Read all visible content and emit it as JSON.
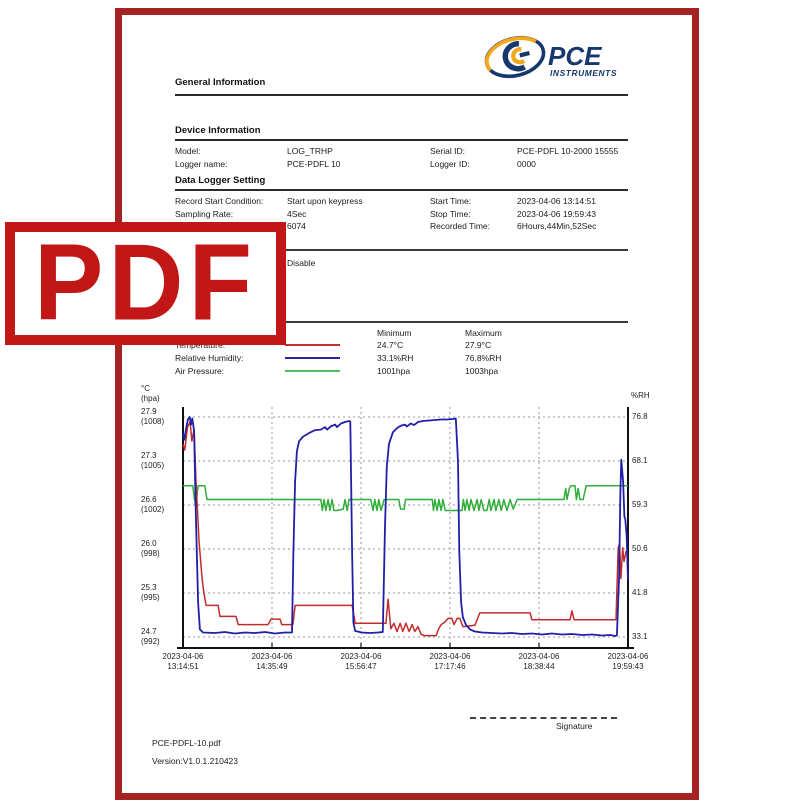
{
  "page": {
    "stamp_text": "PDF",
    "frame_color": "#a32222",
    "stamp_color": "#c11717"
  },
  "logo": {
    "brand": "PCE",
    "sub": "INSTRUMENTS",
    "navy": "#16386e",
    "orange": "#f2a71d"
  },
  "sections": {
    "general": "General Information",
    "device": "Device Information",
    "logger": "Data Logger Setting"
  },
  "device_info": {
    "model_label": "Model:",
    "model_value": "LOG_TRHP",
    "serial_label": "Serial ID:",
    "serial_value": "PCE-PDFL 10-2000 15555",
    "name_label": "Logger name:",
    "name_value": "PCE-PDFL 10",
    "id_label": "Logger ID:",
    "id_value": "0000"
  },
  "logger_setting": {
    "cond_label": "Record Start Condition:",
    "cond_value": "Start upon keypress",
    "start_label": "Start Time:",
    "start_value": "2023-04-06 13:14:51",
    "rate_label": "Sampling Rate:",
    "rate_value": "4Sec",
    "stop_label": "Stop Time:",
    "stop_value": "2023-04-06 19:59:43",
    "count_value": "6074",
    "rec_label": "Recorded Time:",
    "rec_value": "6Hours,44Min,52Sec",
    "alarm_value": "Disable"
  },
  "summary": {
    "col_min": "Minimum",
    "col_max": "Maximum",
    "rows": [
      {
        "label": "Temperature:",
        "color": "#c03030",
        "min": "24.7°C",
        "max": "27.9°C"
      },
      {
        "label": "Relative Humidity:",
        "color": "#2525a5",
        "min": "33.1%RH",
        "max": "76.8%RH"
      },
      {
        "label": "Air Pressure:",
        "color": "#4fbf5f",
        "min": "1001hpa",
        "max": "1003hpa"
      }
    ]
  },
  "footer": {
    "filename": "PCE-PDFL-10.pdf",
    "version": "Version:V1.0.1.210423",
    "signature_label": "Signature"
  },
  "chart_data": {
    "type": "line",
    "grid": true,
    "y_left": {
      "title_lines": [
        "°C",
        "(hpa)"
      ],
      "ticks": [
        [
          "27.9",
          "(1008)"
        ],
        [
          "27.3",
          "(1005)"
        ],
        [
          "26.6",
          "(1002)"
        ],
        [
          "26.0",
          "(998)"
        ],
        [
          "25.3",
          "(995)"
        ],
        [
          "24.7",
          "(992)"
        ]
      ],
      "temp_range": [
        24.7,
        27.9
      ],
      "pressure_range": [
        992,
        1008
      ]
    },
    "y_right": {
      "title": "%RH",
      "ticks": [
        "76.8",
        "68.1",
        "59.3",
        "50.6",
        "41.8",
        "33.1"
      ],
      "range": [
        33.1,
        76.8
      ]
    },
    "x_ticks": [
      [
        "2023-04-06",
        "13:14:51"
      ],
      [
        "2023-04-06",
        "14:35:49"
      ],
      [
        "2023-04-06",
        "15:56:47"
      ],
      [
        "2023-04-06",
        "17:17:46"
      ],
      [
        "2023-04-06",
        "18:38:44"
      ],
      [
        "2023-04-06",
        "19:59:43"
      ]
    ],
    "series": [
      {
        "name": "Air Pressure",
        "unit": "hpa",
        "color": "#2fae3a",
        "width": 1.5,
        "axis_range": [
          992,
          1008
        ],
        "points": [
          [
            0,
            1003
          ],
          [
            0.022,
            1003
          ],
          [
            0.025,
            1002.2
          ],
          [
            0.028,
            1001.6
          ],
          [
            0.031,
            1002.2
          ],
          [
            0.034,
            1003
          ],
          [
            0.049,
            1003
          ],
          [
            0.054,
            1002
          ],
          [
            0.31,
            1002
          ],
          [
            0.313,
            1001.2
          ],
          [
            0.317,
            1002
          ],
          [
            0.321,
            1001.2
          ],
          [
            0.326,
            1002
          ],
          [
            0.33,
            1001.2
          ],
          [
            0.335,
            1002
          ],
          [
            0.339,
            1001.2
          ],
          [
            0.346,
            1001.2
          ],
          [
            0.36,
            1001.3
          ],
          [
            0.364,
            1002
          ],
          [
            0.369,
            1001.2
          ],
          [
            0.373,
            1002
          ],
          [
            0.38,
            1002
          ],
          [
            0.422,
            1002
          ],
          [
            0.427,
            1001.2
          ],
          [
            0.431,
            1002
          ],
          [
            0.436,
            1001.2
          ],
          [
            0.44,
            1002
          ],
          [
            0.445,
            1001.2
          ],
          [
            0.452,
            1002
          ],
          [
            0.485,
            1002
          ],
          [
            0.489,
            1001.3
          ],
          [
            0.497,
            1001.3
          ],
          [
            0.5,
            1002
          ],
          [
            0.56,
            1002
          ],
          [
            0.563,
            1001.2
          ],
          [
            0.566,
            1002
          ],
          [
            0.571,
            1001.2
          ],
          [
            0.575,
            1002
          ],
          [
            0.58,
            1001.2
          ],
          [
            0.584,
            1002
          ],
          [
            0.589,
            1001.2
          ],
          [
            0.593,
            1001.2
          ],
          [
            0.627,
            1001.2
          ],
          [
            0.63,
            1002
          ],
          [
            0.634,
            1001.2
          ],
          [
            0.638,
            1002
          ],
          [
            0.643,
            1001.2
          ],
          [
            0.647,
            1002
          ],
          [
            0.654,
            1001.2
          ],
          [
            0.661,
            1002
          ],
          [
            0.665,
            1001.2
          ],
          [
            0.67,
            1002
          ],
          [
            0.676,
            1001.2
          ],
          [
            0.683,
            1001.2
          ],
          [
            0.688,
            1002
          ],
          [
            0.692,
            1001.2
          ],
          [
            0.699,
            1002
          ],
          [
            0.703,
            1001.2
          ],
          [
            0.71,
            1002
          ],
          [
            0.715,
            1001.2
          ],
          [
            0.721,
            1002
          ],
          [
            0.728,
            1001.2
          ],
          [
            0.735,
            1002
          ],
          [
            0.742,
            1001.3
          ],
          [
            0.751,
            1002
          ],
          [
            0.856,
            1002
          ],
          [
            0.86,
            1002.8
          ],
          [
            0.863,
            1002
          ],
          [
            0.868,
            1002.8
          ],
          [
            0.872,
            1003
          ],
          [
            0.881,
            1003
          ],
          [
            0.884,
            1002
          ],
          [
            0.888,
            1002.8
          ],
          [
            0.892,
            1002
          ],
          [
            0.899,
            1002
          ],
          [
            0.906,
            1003
          ],
          [
            1,
            1003
          ]
        ]
      },
      {
        "name": "Temperature",
        "unit": "°C",
        "color": "#c42b2b",
        "width": 1.5,
        "axis_range": [
          24.7,
          27.9
        ],
        "points": [
          [
            0,
            27.5
          ],
          [
            0.004,
            27.42
          ],
          [
            0.01,
            27.75
          ],
          [
            0.016,
            27.83
          ],
          [
            0.02,
            27.55
          ],
          [
            0.025,
            27.72
          ],
          [
            0.029,
            27
          ],
          [
            0.036,
            26.1
          ],
          [
            0.043,
            25.55
          ],
          [
            0.047,
            25.34
          ],
          [
            0.052,
            25.16
          ],
          [
            0.079,
            25.16
          ],
          [
            0.083,
            25
          ],
          [
            0.119,
            25
          ],
          [
            0.124,
            24.88
          ],
          [
            0.191,
            24.88
          ],
          [
            0.198,
            24.96
          ],
          [
            0.218,
            24.96
          ],
          [
            0.222,
            24.88
          ],
          [
            0.247,
            24.88
          ],
          [
            0.252,
            25.16
          ],
          [
            0.38,
            25.16
          ],
          [
            0.387,
            24.9
          ],
          [
            0.456,
            24.9
          ],
          [
            0.461,
            25.25
          ],
          [
            0.467,
            24.82
          ],
          [
            0.474,
            24.9
          ],
          [
            0.481,
            24.78
          ],
          [
            0.488,
            24.9
          ],
          [
            0.494,
            24.78
          ],
          [
            0.501,
            24.9
          ],
          [
            0.508,
            24.78
          ],
          [
            0.515,
            24.88
          ],
          [
            0.521,
            24.78
          ],
          [
            0.528,
            24.85
          ],
          [
            0.535,
            24.74
          ],
          [
            0.542,
            24.72
          ],
          [
            0.569,
            24.72
          ],
          [
            0.573,
            24.8
          ],
          [
            0.58,
            24.88
          ],
          [
            0.589,
            24.92
          ],
          [
            0.596,
            24.97
          ],
          [
            0.604,
            24.97
          ],
          [
            0.609,
            24.88
          ],
          [
            0.616,
            24.97
          ],
          [
            0.622,
            24.97
          ],
          [
            0.629,
            24.85
          ],
          [
            0.656,
            24.87
          ],
          [
            0.667,
            25.05
          ],
          [
            0.78,
            25.05
          ],
          [
            0.784,
            24.95
          ],
          [
            0.87,
            24.95
          ],
          [
            0.874,
            25.08
          ],
          [
            0.879,
            24.95
          ],
          [
            0.973,
            24.95
          ],
          [
            0.978,
            26
          ],
          [
            0.981,
            26.05
          ],
          [
            0.984,
            25.55
          ],
          [
            0.988,
            26
          ],
          [
            0.991,
            25.8
          ],
          [
            0.996,
            25.95
          ],
          [
            1,
            25.9
          ]
        ]
      },
      {
        "name": "Relative Humidity",
        "unit": "%RH",
        "color": "#1f1fa8",
        "width": 1.8,
        "axis_range": [
          33.1,
          76.8
        ],
        "points": [
          [
            0,
            73.5
          ],
          [
            0.003,
            72.3
          ],
          [
            0.007,
            74.5
          ],
          [
            0.011,
            76.3
          ],
          [
            0.015,
            76.8
          ],
          [
            0.018,
            75.3
          ],
          [
            0.021,
            76.5
          ],
          [
            0.025,
            74
          ],
          [
            0.029,
            57
          ],
          [
            0.034,
            40
          ],
          [
            0.038,
            34.6
          ],
          [
            0.045,
            34
          ],
          [
            0.072,
            33.9
          ],
          [
            0.094,
            34.1
          ],
          [
            0.117,
            33.8
          ],
          [
            0.139,
            34
          ],
          [
            0.162,
            33.9
          ],
          [
            0.184,
            34.1
          ],
          [
            0.207,
            33.8
          ],
          [
            0.229,
            34
          ],
          [
            0.245,
            34
          ],
          [
            0.248,
            50
          ],
          [
            0.252,
            64
          ],
          [
            0.256,
            70
          ],
          [
            0.261,
            72
          ],
          [
            0.27,
            72.9
          ],
          [
            0.283,
            73.6
          ],
          [
            0.297,
            74.2
          ],
          [
            0.31,
            74.3
          ],
          [
            0.319,
            74.8
          ],
          [
            0.324,
            74.3
          ],
          [
            0.333,
            75
          ],
          [
            0.342,
            75.3
          ],
          [
            0.346,
            74.8
          ],
          [
            0.355,
            75.5
          ],
          [
            0.364,
            75.8
          ],
          [
            0.373,
            76
          ],
          [
            0.376,
            75.9
          ],
          [
            0.38,
            50
          ],
          [
            0.383,
            36
          ],
          [
            0.387,
            34.3
          ],
          [
            0.402,
            34
          ],
          [
            0.42,
            33.9
          ],
          [
            0.438,
            34
          ],
          [
            0.449,
            34.1
          ],
          [
            0.454,
            55
          ],
          [
            0.458,
            67
          ],
          [
            0.463,
            71.5
          ],
          [
            0.472,
            73.8
          ],
          [
            0.481,
            74.6
          ],
          [
            0.49,
            75.1
          ],
          [
            0.499,
            75.3
          ],
          [
            0.503,
            74.9
          ],
          [
            0.512,
            75.5
          ],
          [
            0.519,
            75.2
          ],
          [
            0.528,
            75.8
          ],
          [
            0.539,
            76
          ],
          [
            0.553,
            76.1
          ],
          [
            0.566,
            76.2
          ],
          [
            0.58,
            76.3
          ],
          [
            0.593,
            76.3
          ],
          [
            0.607,
            76.4
          ],
          [
            0.613,
            76.5
          ],
          [
            0.618,
            68
          ],
          [
            0.621,
            50
          ],
          [
            0.625,
            40
          ],
          [
            0.629,
            37
          ],
          [
            0.636,
            35.5
          ],
          [
            0.645,
            34.6
          ],
          [
            0.656,
            34.2
          ],
          [
            0.672,
            34
          ],
          [
            0.694,
            33.9
          ],
          [
            0.717,
            33.8
          ],
          [
            0.739,
            33.9
          ],
          [
            0.762,
            33.7
          ],
          [
            0.784,
            33.8
          ],
          [
            0.807,
            33.6
          ],
          [
            0.829,
            33.8
          ],
          [
            0.852,
            33.6
          ],
          [
            0.874,
            33.7
          ],
          [
            0.897,
            33.5
          ],
          [
            0.919,
            33.6
          ],
          [
            0.942,
            33.4
          ],
          [
            0.96,
            33.5
          ],
          [
            0.971,
            33.3
          ],
          [
            0.975,
            33.4
          ],
          [
            0.98,
            45
          ],
          [
            0.983,
            62
          ],
          [
            0.985,
            68.3
          ],
          [
            0.989,
            64
          ],
          [
            0.992,
            57
          ],
          [
            0.994,
            56.5
          ],
          [
            0.997,
            53
          ],
          [
            0.999,
            47
          ],
          [
            1,
            44.5
          ]
        ]
      }
    ]
  }
}
